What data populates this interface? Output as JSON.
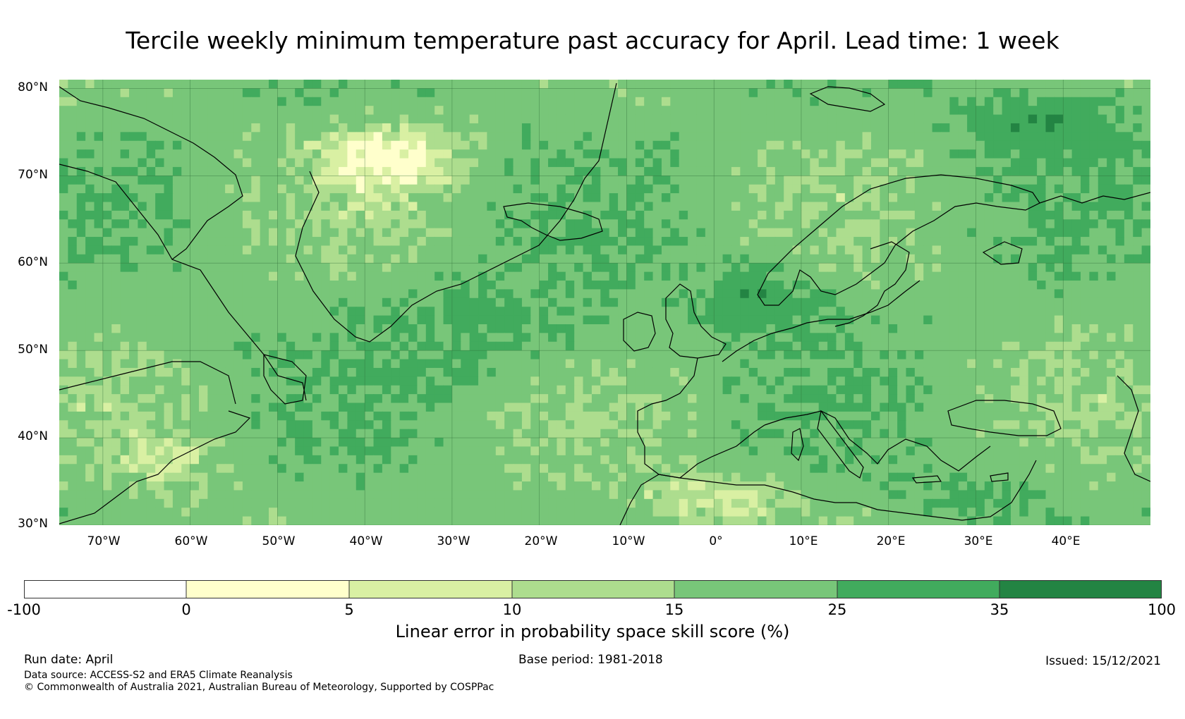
{
  "title": "Tercile weekly minimum temperature past accuracy for April. Lead time: 1 week",
  "map": {
    "lat_labels": [
      "80°N",
      "70°N",
      "60°N",
      "50°N",
      "40°N",
      "30°N"
    ],
    "lon_labels": [
      "70°W",
      "60°W",
      "50°W",
      "40°W",
      "30°W",
      "20°W",
      "10°W",
      "0°",
      "10°E",
      "20°E",
      "30°E",
      "40°E"
    ],
    "extent": {
      "lon_min": -75,
      "lon_max": 50,
      "lat_min": 30,
      "lat_max": 81
    },
    "colors": {
      "c0_5": "#ffffcc",
      "c5_10": "#d9f0a3",
      "c10_15": "#addd8e",
      "c15_25": "#78c679",
      "c25_35": "#41ab5d",
      "c35_100": "#238443",
      "coast": "#000000"
    }
  },
  "colorbar": {
    "ticks": [
      "-100",
      "0",
      "5",
      "10",
      "15",
      "25",
      "35",
      "100"
    ],
    "colors": [
      "#ffffff",
      "#ffffcc",
      "#d9f0a3",
      "#addd8e",
      "#78c679",
      "#41ab5d",
      "#238443"
    ],
    "label": "Linear error in probability space skill score (%)"
  },
  "footer": {
    "run_date": "Run date: April",
    "base_period": "Base period: 1981-2018",
    "issued": "Issued: 15/12/2021",
    "data_source": "Data source: ACCESS-S2 and ERA5 Climate Reanalysis",
    "copyright": "© Commonwealth of Australia 2021, Australian Bureau of Meteorology, Supported by COSPPac"
  }
}
